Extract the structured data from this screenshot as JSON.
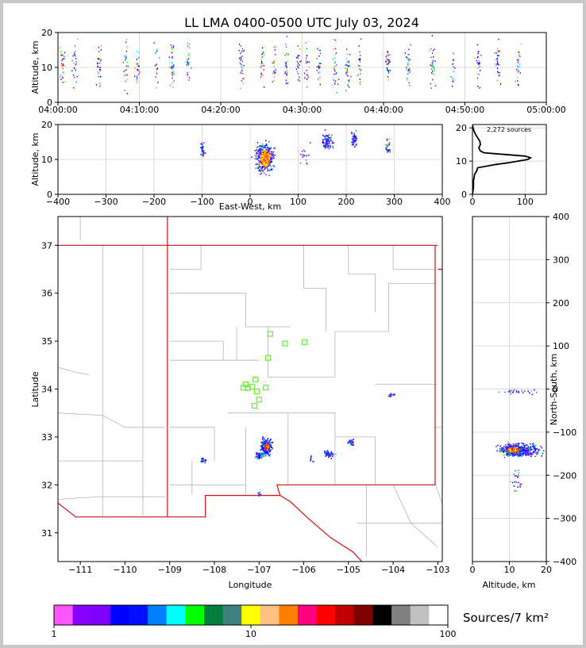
{
  "title": "LL LMA 0400-0500 UTC July 03, 2024",
  "colors": {
    "map_boundary": "#d01010",
    "county_lines": "#b4b4b4",
    "grid": "#dcdcdc",
    "station_marker": "#66ee33"
  },
  "chart_data": [
    {
      "panel": "altitude-time",
      "type": "scatter",
      "ylabel": "Altitude, km",
      "xlim": [
        "04:00:00",
        "05:00:00"
      ],
      "ylim": [
        0,
        20
      ],
      "xticks": [
        "04:00:00",
        "04:10:00",
        "04:20:00",
        "04:30:00",
        "04:40:00",
        "04:50:00",
        "05:00:00"
      ],
      "yticks": [
        "0",
        "10",
        "20"
      ],
      "activity_minutes": [
        0.5,
        2.0,
        5.0,
        8.3,
        9.7,
        12.0,
        14.0,
        16.0,
        22.5,
        25.0,
        26.5,
        28.0,
        29.5,
        30.5,
        32.0,
        34.0,
        35.5,
        37.0,
        40.5,
        43.0,
        46.0,
        48.5,
        51.5,
        54.0,
        56.5
      ]
    },
    {
      "panel": "altitude-east-west",
      "type": "scatter",
      "ylabel": "Altitude, km",
      "xlabel": "East-West, km",
      "xlim": [
        -400,
        400
      ],
      "ylim": [
        0,
        20
      ],
      "xticks": [
        "−400",
        "−300",
        "−200",
        "−100",
        "0",
        "100",
        "200",
        "300",
        "400"
      ],
      "yticks": [
        "0",
        "10",
        "20"
      ],
      "clusters_km": [
        {
          "x": 30,
          "z": 10.5,
          "dx": 16,
          "dz": 3.5,
          "n": 420
        },
        {
          "x": -100,
          "z": 12.5,
          "dx": 4,
          "dz": 2,
          "n": 30
        },
        {
          "x": 160,
          "z": 15.5,
          "dx": 9,
          "dz": 2,
          "n": 110
        },
        {
          "x": 215,
          "z": 16,
          "dx": 5,
          "dz": 2,
          "n": 60
        },
        {
          "x": 285,
          "z": 14,
          "dx": 5,
          "dz": 2,
          "n": 25
        },
        {
          "x": 110,
          "z": 12,
          "dx": 10,
          "dz": 3,
          "n": 15
        }
      ]
    },
    {
      "panel": "altitude-histogram",
      "type": "line",
      "annotation": "2,272 sources",
      "xlim": [
        0,
        140
      ],
      "ylim": [
        0,
        21
      ],
      "xticks": [
        "0",
        "100"
      ],
      "yticks": [
        "0",
        "10",
        "20"
      ],
      "profile": [
        [
          0,
          0
        ],
        [
          2,
          2
        ],
        [
          2,
          4
        ],
        [
          4,
          6
        ],
        [
          8,
          7
        ],
        [
          10,
          8
        ],
        [
          45,
          9
        ],
        [
          68,
          9.5
        ],
        [
          105,
          10.5
        ],
        [
          110,
          11
        ],
        [
          100,
          11.5
        ],
        [
          60,
          12
        ],
        [
          22,
          12.5
        ],
        [
          15,
          13
        ],
        [
          12,
          14
        ],
        [
          15,
          15
        ],
        [
          14,
          16
        ],
        [
          10,
          17
        ],
        [
          6,
          18
        ],
        [
          3,
          19
        ],
        [
          1,
          20
        ],
        [
          0,
          21
        ]
      ]
    },
    {
      "panel": "plan-view",
      "type": "scatter",
      "xlabel": "Longitude",
      "ylabel": "Latitude",
      "xlim": [
        -111.5,
        -102.9
      ],
      "ylim": [
        30.4,
        37.6
      ],
      "xticks": [
        "−111",
        "−110",
        "−109",
        "−108",
        "−107",
        "−106",
        "−105",
        "−104",
        "−103"
      ],
      "yticks": [
        "31",
        "32",
        "33",
        "34",
        "35",
        "36",
        "37"
      ],
      "stations": [
        [
          -106.75,
          35.15
        ],
        [
          -106.42,
          34.95
        ],
        [
          -105.98,
          34.98
        ],
        [
          -106.8,
          34.65
        ],
        [
          -107.08,
          34.2
        ],
        [
          -107.15,
          34.05
        ],
        [
          -107.25,
          34.02
        ],
        [
          -107.35,
          34.03
        ],
        [
          -107.05,
          33.95
        ],
        [
          -107.0,
          33.78
        ],
        [
          -106.85,
          34.03
        ],
        [
          -107.1,
          33.65
        ],
        [
          -107.3,
          34.1
        ]
      ],
      "clusters_deg": [
        {
          "lon": -106.85,
          "lat": 32.8,
          "dlon": 0.09,
          "dlat": 0.13,
          "n": 320
        },
        {
          "lon": -107.0,
          "lat": 32.62,
          "dlon": 0.07,
          "dlat": 0.05,
          "n": 60
        },
        {
          "lon": -108.25,
          "lat": 32.52,
          "dlon": 0.06,
          "dlat": 0.04,
          "n": 25
        },
        {
          "lon": -105.45,
          "lat": 32.65,
          "dlon": 0.1,
          "dlat": 0.05,
          "n": 60
        },
        {
          "lon": -104.95,
          "lat": 32.9,
          "dlon": 0.05,
          "dlat": 0.05,
          "n": 35
        },
        {
          "lon": -104.05,
          "lat": 33.9,
          "dlon": 0.05,
          "dlat": 0.03,
          "n": 18
        },
        {
          "lon": -105.85,
          "lat": 32.55,
          "dlon": 0.03,
          "dlat": 0.05,
          "n": 8
        },
        {
          "lon": -107.0,
          "lat": 31.85,
          "dlon": 0.03,
          "dlat": 0.06,
          "n": 8
        }
      ]
    },
    {
      "panel": "north-south-altitude",
      "type": "scatter",
      "xlabel": "Altitude, km",
      "ylabel": "North-South, km",
      "xlim": [
        0,
        20
      ],
      "ylim": [
        -400,
        400
      ],
      "xticks": [
        "0",
        "10",
        "20"
      ],
      "yticks": [
        "−400",
        "−300",
        "−200",
        "−100",
        "0",
        "100",
        "200",
        "300",
        "400"
      ],
      "clusters_km": [
        {
          "z": 11,
          "y": -140,
          "dz": 3,
          "dy": 12,
          "n": 380
        },
        {
          "z": 15,
          "y": -140,
          "dz": 3,
          "dy": 14,
          "n": 150
        },
        {
          "z": 12,
          "y": -5,
          "dz": 4,
          "dy": 5,
          "n": 30
        },
        {
          "z": 12,
          "y": -210,
          "dz": 2,
          "dy": 30,
          "n": 25
        }
      ]
    },
    {
      "panel": "colorbar",
      "type": "heatmap",
      "label": "Sources/7 km²",
      "ticks": [
        "1",
        "10",
        "100"
      ],
      "scale": "log",
      "range": [
        1,
        100
      ],
      "colors": [
        "#ff55ff",
        "#8800ff",
        "#8000ff",
        "#0000ff",
        "#0010ff",
        "#0080ff",
        "#00ffff",
        "#00ff00",
        "#00803c",
        "#408080",
        "#ffff00",
        "#ffc080",
        "#ff8000",
        "#ff0080",
        "#ff0000",
        "#c00000",
        "#800000",
        "#000000",
        "#808080",
        "#c0c0c0",
        "#ffffff"
      ]
    }
  ]
}
